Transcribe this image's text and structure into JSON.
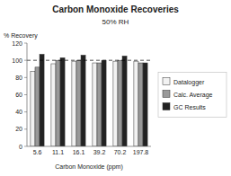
{
  "chart_data": {
    "type": "bar",
    "title": "Carbon Monoxide Recoveries",
    "subtitle": "50% RH",
    "xlabel": "Carbon Monoxide (ppm)",
    "ylabel": "% Recovery",
    "categories": [
      "5.6",
      "11.1",
      "16.1",
      "39.2",
      "70.2",
      "197.8"
    ],
    "series": [
      {
        "name": "Datalogger",
        "color": "#f2f2f2",
        "values": [
          87,
          96,
          99,
          97,
          99,
          99
        ]
      },
      {
        "name": "Calc. Average",
        "color": "#999999",
        "values": [
          92,
          100,
          100,
          97,
          100,
          97
        ]
      },
      {
        "name": "GC Results",
        "color": "#222222",
        "values": [
          107,
          103,
          106,
          100,
          105,
          97
        ]
      }
    ],
    "reference_line": 100,
    "ylim": [
      0,
      120
    ],
    "yticks": [
      0,
      20,
      40,
      60,
      80,
      100,
      120
    ],
    "grid": false,
    "legend": "right"
  }
}
